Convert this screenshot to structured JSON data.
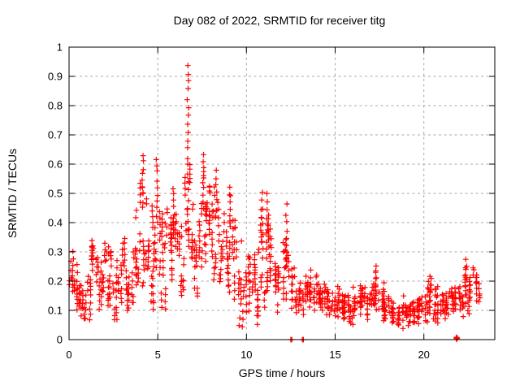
{
  "window": {
    "background": "#ffffff"
  },
  "chart_data": {
    "type": "scatter",
    "title": "Day 082 of 2022, SRMTID for receiver titg",
    "xlabel": "GPS time / hours",
    "ylabel": "SRMTID / TECUs",
    "xlim": [
      0,
      24
    ],
    "ylim": [
      0,
      1
    ],
    "xtick_values": [
      0,
      5,
      10,
      15,
      20
    ],
    "xtick_labels": [
      "0",
      "5",
      "10",
      "15",
      "20"
    ],
    "ytick_values": [
      0,
      0.1,
      0.2,
      0.3,
      0.4,
      0.5,
      0.6,
      0.7,
      0.8,
      0.9,
      1
    ],
    "ytick_labels": [
      "0",
      "0.1",
      "0.2",
      "0.3",
      "0.4",
      "0.5",
      "0.6",
      "0.7",
      "0.8",
      "0.9",
      "1"
    ],
    "grid": true,
    "grid_color": "#a8a8a8",
    "border_color": "#000000",
    "marker": "+",
    "marker_color": "#ff0000",
    "series_name": "SRMTID",
    "peak_value": 0.94,
    "peak_time_hours": 6.7,
    "envelope_bins": {
      "bin_width": 0.25,
      "bins": [
        [
          0.0,
          0.1,
          0.32,
          14
        ],
        [
          0.25,
          0.08,
          0.26,
          13
        ],
        [
          0.5,
          0.07,
          0.22,
          12
        ],
        [
          0.75,
          0.06,
          0.18,
          12
        ],
        [
          1.0,
          0.06,
          0.22,
          12
        ],
        [
          1.25,
          0.1,
          0.35,
          14
        ],
        [
          1.5,
          0.1,
          0.3,
          13
        ],
        [
          1.75,
          0.07,
          0.28,
          12
        ],
        [
          2.0,
          0.08,
          0.33,
          14
        ],
        [
          2.25,
          0.08,
          0.31,
          14
        ],
        [
          2.5,
          0.06,
          0.28,
          12
        ],
        [
          2.75,
          0.08,
          0.3,
          12
        ],
        [
          3.0,
          0.12,
          0.35,
          14
        ],
        [
          3.25,
          0.1,
          0.32,
          13
        ],
        [
          3.5,
          0.12,
          0.38,
          14
        ],
        [
          3.75,
          0.15,
          0.45,
          14
        ],
        [
          4.0,
          0.18,
          0.55,
          15
        ],
        [
          4.25,
          0.16,
          0.52,
          14
        ],
        [
          4.5,
          0.1,
          0.5,
          14
        ],
        [
          4.75,
          0.07,
          0.45,
          14
        ],
        [
          5.0,
          0.1,
          0.55,
          15
        ],
        [
          5.25,
          0.1,
          0.5,
          14
        ],
        [
          5.5,
          0.15,
          0.45,
          13
        ],
        [
          5.75,
          0.2,
          0.5,
          14
        ],
        [
          6.0,
          0.18,
          0.45,
          14
        ],
        [
          6.25,
          0.13,
          0.42,
          13
        ],
        [
          6.5,
          0.25,
          0.58,
          14
        ],
        [
          6.75,
          0.25,
          0.6,
          15
        ],
        [
          7.0,
          0.14,
          0.48,
          14
        ],
        [
          7.25,
          0.22,
          0.55,
          14
        ],
        [
          7.5,
          0.25,
          0.6,
          15
        ],
        [
          7.75,
          0.22,
          0.58,
          14
        ],
        [
          8.0,
          0.2,
          0.52,
          14
        ],
        [
          8.25,
          0.18,
          0.5,
          14
        ],
        [
          8.5,
          0.15,
          0.45,
          13
        ],
        [
          8.75,
          0.15,
          0.4,
          13
        ],
        [
          9.0,
          0.15,
          0.5,
          13
        ],
        [
          9.25,
          0.12,
          0.42,
          13
        ],
        [
          9.5,
          0.05,
          0.35,
          13
        ],
        [
          9.75,
          0.04,
          0.3,
          13
        ],
        [
          10.0,
          0.08,
          0.3,
          13
        ],
        [
          10.25,
          0.1,
          0.32,
          13
        ],
        [
          10.5,
          0.04,
          0.35,
          13
        ],
        [
          10.75,
          0.08,
          0.45,
          14
        ],
        [
          11.0,
          0.1,
          0.45,
          14
        ],
        [
          11.25,
          0.1,
          0.4,
          13
        ],
        [
          11.5,
          0.1,
          0.3,
          12
        ],
        [
          11.75,
          0.08,
          0.28,
          12
        ],
        [
          12.0,
          0.1,
          0.35,
          12
        ],
        [
          12.25,
          0.05,
          0.42,
          13
        ],
        [
          12.5,
          0.08,
          0.25,
          12
        ],
        [
          12.75,
          0.08,
          0.22,
          12
        ],
        [
          13.0,
          0.08,
          0.2,
          12
        ],
        [
          13.25,
          0.08,
          0.22,
          12
        ],
        [
          13.5,
          0.1,
          0.24,
          12
        ],
        [
          13.75,
          0.1,
          0.22,
          12
        ],
        [
          14.0,
          0.1,
          0.2,
          12
        ],
        [
          14.25,
          0.08,
          0.2,
          12
        ],
        [
          14.5,
          0.08,
          0.18,
          12
        ],
        [
          14.75,
          0.08,
          0.18,
          12
        ],
        [
          15.0,
          0.08,
          0.18,
          12
        ],
        [
          15.25,
          0.07,
          0.17,
          12
        ],
        [
          15.5,
          0.06,
          0.16,
          12
        ],
        [
          15.75,
          0.05,
          0.15,
          12
        ],
        [
          16.0,
          0.06,
          0.18,
          12
        ],
        [
          16.25,
          0.07,
          0.2,
          12
        ],
        [
          16.5,
          0.06,
          0.18,
          12
        ],
        [
          16.75,
          0.06,
          0.16,
          12
        ],
        [
          17.0,
          0.08,
          0.2,
          12
        ],
        [
          17.25,
          0.1,
          0.24,
          12
        ],
        [
          17.5,
          0.08,
          0.18,
          12
        ],
        [
          17.75,
          0.06,
          0.16,
          12
        ],
        [
          18.0,
          0.05,
          0.15,
          12
        ],
        [
          18.25,
          0.05,
          0.14,
          12
        ],
        [
          18.5,
          0.04,
          0.13,
          12
        ],
        [
          18.75,
          0.04,
          0.13,
          12
        ],
        [
          19.0,
          0.04,
          0.12,
          12
        ],
        [
          19.25,
          0.05,
          0.13,
          12
        ],
        [
          19.5,
          0.05,
          0.14,
          12
        ],
        [
          19.75,
          0.06,
          0.16,
          12
        ],
        [
          20.0,
          0.06,
          0.18,
          12
        ],
        [
          20.25,
          0.07,
          0.21,
          12
        ],
        [
          20.5,
          0.06,
          0.18,
          12
        ],
        [
          20.75,
          0.06,
          0.16,
          12
        ],
        [
          21.0,
          0.06,
          0.16,
          12
        ],
        [
          21.25,
          0.07,
          0.17,
          12
        ],
        [
          21.5,
          0.07,
          0.18,
          12
        ],
        [
          21.75,
          0.08,
          0.18,
          12
        ],
        [
          22.0,
          0.08,
          0.2,
          12
        ],
        [
          22.25,
          0.1,
          0.26,
          13
        ],
        [
          22.5,
          0.08,
          0.22,
          12
        ],
        [
          22.75,
          0.1,
          0.25,
          12
        ],
        [
          23.0,
          0.12,
          0.2,
          6
        ]
      ]
    },
    "spikes": [
      [
        4.15,
        0.45,
        0.63,
        9
      ],
      [
        4.95,
        0.4,
        0.62,
        10
      ],
      [
        5.9,
        0.38,
        0.52,
        7
      ],
      [
        6.7,
        0.45,
        0.94,
        18
      ],
      [
        7.55,
        0.45,
        0.63,
        9
      ],
      [
        8.3,
        0.42,
        0.58,
        7
      ],
      [
        9.1,
        0.4,
        0.52,
        6
      ],
      [
        10.9,
        0.28,
        0.5,
        9
      ],
      [
        11.15,
        0.28,
        0.5,
        9
      ],
      [
        12.25,
        0.25,
        0.46,
        8
      ],
      [
        17.3,
        0.17,
        0.25,
        5
      ],
      [
        20.3,
        0.15,
        0.22,
        4
      ],
      [
        22.4,
        0.2,
        0.27,
        5
      ]
    ],
    "zero_points": [
      12.5,
      12.56,
      13.15,
      13.21
    ],
    "zero_cluster": {
      "x": 21.82,
      "width": 0.08,
      "n": 8,
      "y_max": 0.012
    }
  }
}
